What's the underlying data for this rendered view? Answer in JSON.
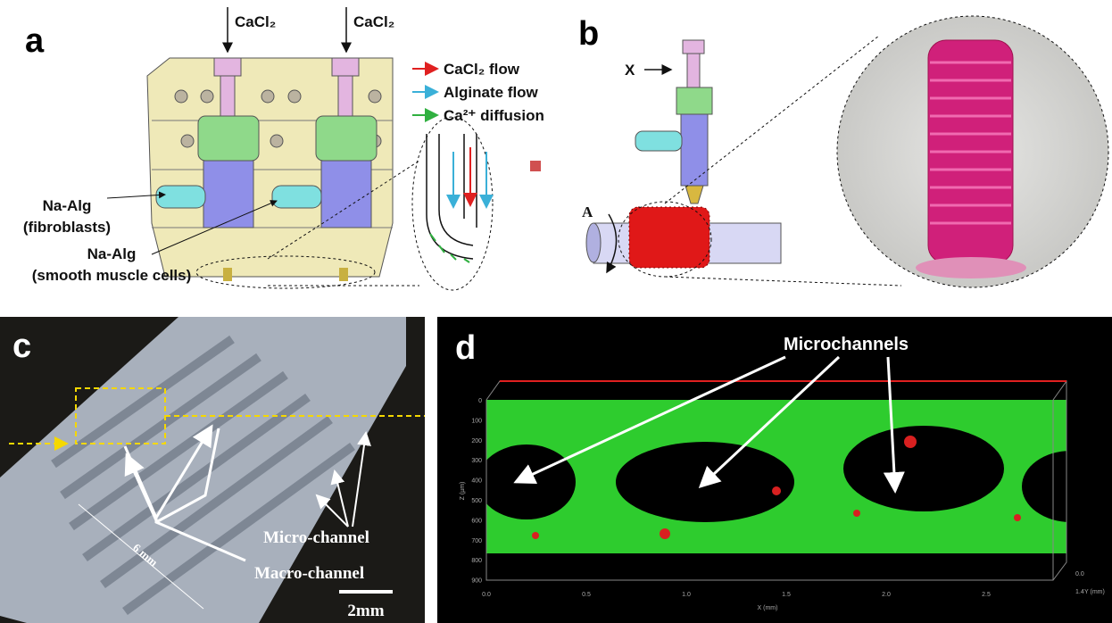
{
  "panel_a": {
    "label": "a",
    "inlets": [
      "CaCl₂",
      "CaCl₂"
    ],
    "legend": [
      "CaCl₂ flow",
      "Alginate flow",
      "Ca²⁺ diffusion"
    ],
    "inputs": [
      {
        "line1": "Na-Alg",
        "line2": "(fibroblasts)"
      },
      {
        "line1": "Na-Alg",
        "line2": "(smooth muscle cells)"
      }
    ]
  },
  "panel_b": {
    "label": "b",
    "x_label": "X",
    "a_label": "A"
  },
  "panel_c": {
    "label": "c",
    "length": "6 mm",
    "labels": [
      "Micro-channel",
      "Macro-channel"
    ],
    "scale_bar": "2mm"
  },
  "panel_d": {
    "label": "d",
    "annotation": "Microchannels",
    "z_axis": {
      "title": "Z (µm)",
      "ticks": [
        0,
        100,
        200,
        300,
        400,
        500,
        600,
        700,
        800,
        900
      ]
    },
    "x_axis": {
      "title": "X (mm)",
      "ticks": [
        "0.0",
        "0.5",
        "1.0",
        "1.5",
        "2.0",
        "2.5"
      ]
    },
    "y_axis": {
      "title": "Y (mm)",
      "ticks": [
        "0.0",
        "1.4"
      ]
    }
  }
}
